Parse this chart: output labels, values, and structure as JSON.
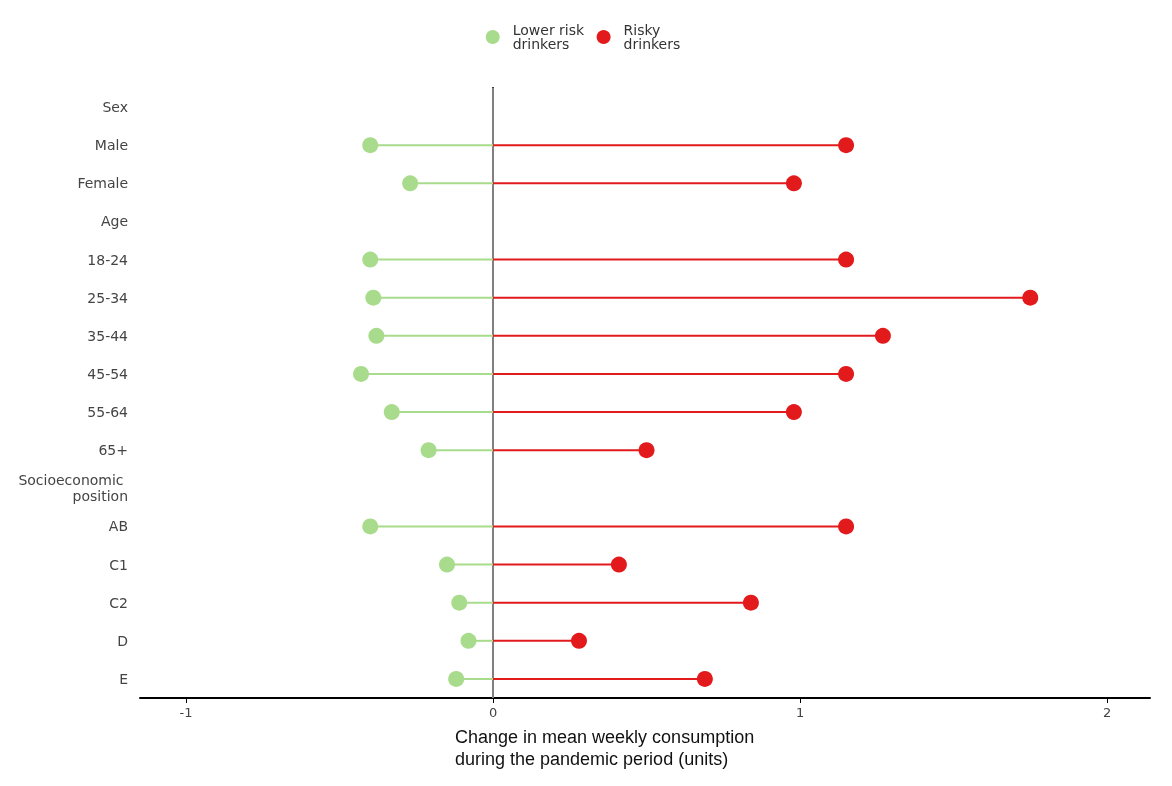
{
  "chart_data": {
    "type": "lollipop",
    "orientation": "horizontal",
    "xlabel": "Change in mean weekly consumption during the pandemic period (units)",
    "categories": [
      "Sex",
      "Male",
      "Female",
      "Age",
      "18-24",
      "25-34",
      "35-44",
      "45-54",
      "55-64",
      "65+",
      "Socioeconomic position",
      "AB",
      "C1",
      "C2",
      "D",
      "E"
    ],
    "series": [
      {
        "name": "Lower risk drinkers",
        "color": "#a8dc8c",
        "values": [
          null,
          -0.4,
          -0.27,
          null,
          -0.4,
          -0.39,
          -0.38,
          -0.43,
          -0.33,
          -0.21,
          null,
          -0.4,
          -0.15,
          -0.11,
          -0.08,
          -0.12
        ]
      },
      {
        "name": "Risky drinkers",
        "color": "#e31a1c",
        "values": [
          null,
          1.15,
          0.98,
          null,
          1.15,
          1.75,
          1.27,
          1.15,
          0.98,
          0.5,
          null,
          1.15,
          0.41,
          0.84,
          0.28,
          0.69
        ]
      }
    ],
    "xlim": [
      -1.15,
      2.14
    ],
    "xticks": [
      -1,
      0,
      1,
      2
    ],
    "ref_lines": [
      {
        "axis": "x",
        "value": 0,
        "color": "#808080"
      }
    ],
    "legend": "top",
    "grid": false,
    "marker": "circle"
  }
}
